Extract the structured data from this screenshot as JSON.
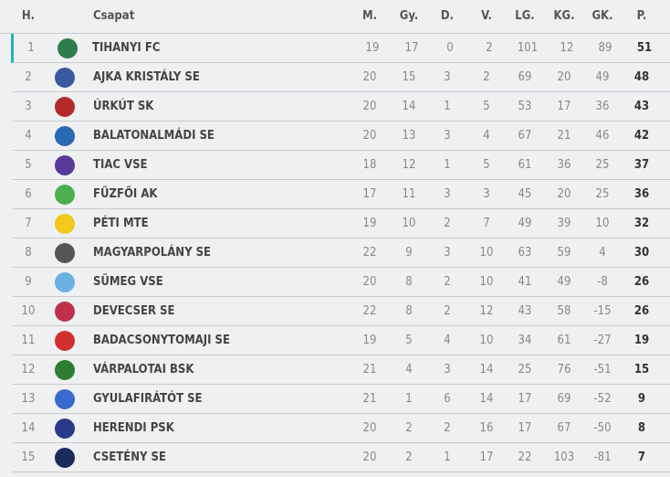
{
  "headers": {
    "rank": "H.",
    "team": "Csapat",
    "m": "M.",
    "gy": "Gy.",
    "d": "D.",
    "v": "V.",
    "lg": "LG.",
    "kg": "KG.",
    "gk": "GK.",
    "p": "P."
  },
  "accent": "#1fb3bd",
  "rows": [
    {
      "rank": "1",
      "team": "TIHANYI FC",
      "m": "19",
      "gy": "17",
      "d": "0",
      "v": "2",
      "lg": "101",
      "kg": "12",
      "gk": "89",
      "p": "51",
      "logo": "#2e7d4f"
    },
    {
      "rank": "2",
      "team": "AJKA KRISTÁLY SE",
      "m": "20",
      "gy": "15",
      "d": "3",
      "v": "2",
      "lg": "69",
      "kg": "20",
      "gk": "49",
      "p": "48",
      "logo": "#3a5aa0"
    },
    {
      "rank": "3",
      "team": "ÚRKÚT SK",
      "m": "20",
      "gy": "14",
      "d": "1",
      "v": "5",
      "lg": "53",
      "kg": "17",
      "gk": "36",
      "p": "43",
      "logo": "#b22a2a"
    },
    {
      "rank": "4",
      "team": "BALATONALMÁDI SE",
      "m": "20",
      "gy": "13",
      "d": "3",
      "v": "4",
      "lg": "67",
      "kg": "21",
      "gk": "46",
      "p": "42",
      "logo": "#2a6ab2"
    },
    {
      "rank": "5",
      "team": "TIAC VSE",
      "m": "18",
      "gy": "12",
      "d": "1",
      "v": "5",
      "lg": "61",
      "kg": "36",
      "gk": "25",
      "p": "37",
      "logo": "#5a3a9a"
    },
    {
      "rank": "6",
      "team": "FŰZFŐI AK",
      "m": "17",
      "gy": "11",
      "d": "3",
      "v": "3",
      "lg": "45",
      "kg": "20",
      "gk": "25",
      "p": "36",
      "logo": "#4caf50"
    },
    {
      "rank": "7",
      "team": "PÉTI MTE",
      "m": "19",
      "gy": "10",
      "d": "2",
      "v": "7",
      "lg": "49",
      "kg": "39",
      "gk": "10",
      "p": "32",
      "logo": "#f2c81c"
    },
    {
      "rank": "8",
      "team": "MAGYARPOLÁNY SE",
      "m": "22",
      "gy": "9",
      "d": "3",
      "v": "10",
      "lg": "63",
      "kg": "59",
      "gk": "4",
      "p": "30",
      "logo": "#555555"
    },
    {
      "rank": "9",
      "team": "SÜMEG VSE",
      "m": "20",
      "gy": "8",
      "d": "2",
      "v": "10",
      "lg": "41",
      "kg": "49",
      "gk": "-8",
      "p": "26",
      "logo": "#6ab0e0"
    },
    {
      "rank": "10",
      "team": "DEVECSER SE",
      "m": "22",
      "gy": "8",
      "d": "2",
      "v": "12",
      "lg": "43",
      "kg": "58",
      "gk": "-15",
      "p": "26",
      "logo": "#c0304a"
    },
    {
      "rank": "11",
      "team": "BADACSONYTOMAJI SE",
      "m": "19",
      "gy": "5",
      "d": "4",
      "v": "10",
      "lg": "34",
      "kg": "61",
      "gk": "-27",
      "p": "19",
      "logo": "#d32f2f"
    },
    {
      "rank": "12",
      "team": "VÁRPALOTAI BSK",
      "m": "21",
      "gy": "4",
      "d": "3",
      "v": "14",
      "lg": "25",
      "kg": "76",
      "gk": "-51",
      "p": "15",
      "logo": "#2e7d32"
    },
    {
      "rank": "13",
      "team": "GYULAFIRÁTÓT SE",
      "m": "21",
      "gy": "1",
      "d": "6",
      "v": "14",
      "lg": "17",
      "kg": "69",
      "gk": "-52",
      "p": "9",
      "logo": "#3a6ad0"
    },
    {
      "rank": "14",
      "team": "HERENDI PSK",
      "m": "20",
      "gy": "2",
      "d": "2",
      "v": "16",
      "lg": "17",
      "kg": "67",
      "gk": "-50",
      "p": "8",
      "logo": "#2a3a8a"
    },
    {
      "rank": "15",
      "team": "CSETÉNY SE",
      "m": "20",
      "gy": "2",
      "d": "1",
      "v": "17",
      "lg": "22",
      "kg": "103",
      "gk": "-81",
      "p": "7",
      "logo": "#1a2a5a"
    }
  ]
}
